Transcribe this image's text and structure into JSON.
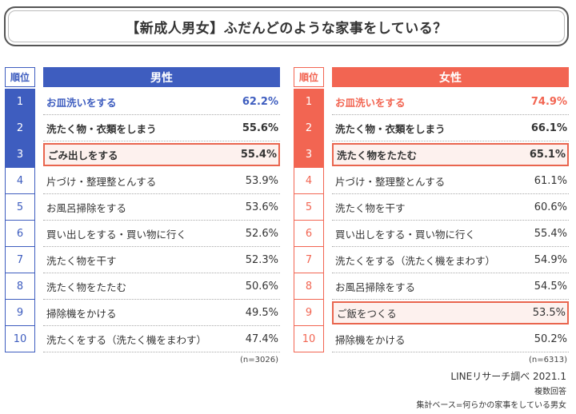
{
  "title": "【新成人男女】ふだんどのような家事をしている？",
  "colors": {
    "male": "#3e5dbf",
    "female": "#f26552",
    "highlight": "#e9654e"
  },
  "chart_data": [
    {
      "type": "table",
      "rank_header": "順位",
      "header": "男性",
      "n_note": "(n=3026)",
      "rows": [
        {
          "rank": "1",
          "label": "お皿洗いをする",
          "value": "62.2%"
        },
        {
          "rank": "2",
          "label": "洗たく物・衣類をしまう",
          "value": "55.6%"
        },
        {
          "rank": "3",
          "label": "ごみ出しをする",
          "value": "55.4%",
          "highlight": true
        },
        {
          "rank": "4",
          "label": "片づけ・整理整とんする",
          "value": "53.9%"
        },
        {
          "rank": "5",
          "label": "お風呂掃除をする",
          "value": "53.6%"
        },
        {
          "rank": "6",
          "label": "買い出しをする・買い物に行く",
          "value": "52.6%"
        },
        {
          "rank": "7",
          "label": "洗たく物を干す",
          "value": "52.3%"
        },
        {
          "rank": "8",
          "label": "洗たく物をたたむ",
          "value": "50.6%"
        },
        {
          "rank": "9",
          "label": "掃除機をかける",
          "value": "49.5%"
        },
        {
          "rank": "10",
          "label": "洗たくをする（洗たく機をまわす）",
          "value": "47.4%"
        }
      ]
    },
    {
      "type": "table",
      "rank_header": "順位",
      "header": "女性",
      "n_note": "(n=6313)",
      "rows": [
        {
          "rank": "1",
          "label": "お皿洗いをする",
          "value": "74.9%"
        },
        {
          "rank": "2",
          "label": "洗たく物・衣類をしまう",
          "value": "66.1%"
        },
        {
          "rank": "3",
          "label": "洗たく物をたたむ",
          "value": "65.1%",
          "highlight": true
        },
        {
          "rank": "4",
          "label": "片づけ・整理整とんする",
          "value": "61.1%"
        },
        {
          "rank": "5",
          "label": "洗たく物を干す",
          "value": "60.6%"
        },
        {
          "rank": "6",
          "label": "買い出しをする・買い物に行く",
          "value": "55.4%"
        },
        {
          "rank": "7",
          "label": "洗たくをする（洗たく機をまわす）",
          "value": "54.9%"
        },
        {
          "rank": "8",
          "label": "お風呂掃除をする",
          "value": "54.5%"
        },
        {
          "rank": "9",
          "label": "ご飯をつくる",
          "value": "53.5%",
          "highlight": true
        },
        {
          "rank": "10",
          "label": "掃除機をかける",
          "value": "50.2%"
        }
      ]
    }
  ],
  "footer": {
    "source": "LINEリサーチ調べ 2021.1",
    "note1": "複数回答",
    "note2": "集計ベース=何らかの家事をしている男女"
  }
}
